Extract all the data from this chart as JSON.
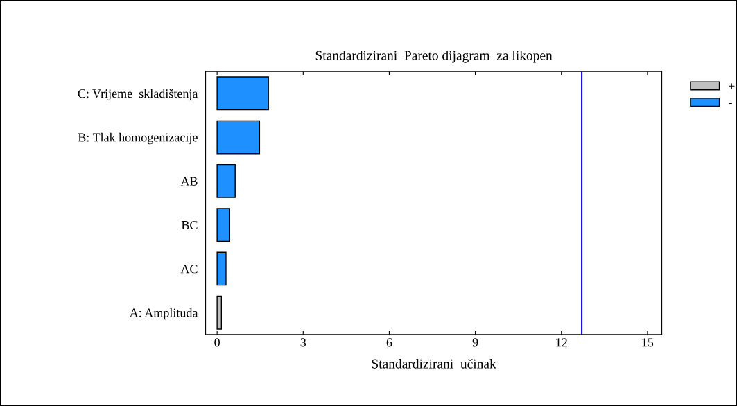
{
  "chart_data": {
    "type": "bar",
    "orientation": "horizontal",
    "title": "Standardizirani  Pareto dijagram  za likopen",
    "xlabel": "Standardizirani  učinak",
    "categories": [
      "C: Vrijeme  skladištenja",
      "B: Tlak homogenizacije",
      "AB",
      "BC",
      "AC",
      "A: Amplituda"
    ],
    "series": [
      {
        "name": "+",
        "color": "#c0c0c0",
        "values": [
          null,
          null,
          null,
          null,
          null,
          0.15
        ]
      },
      {
        "name": "-",
        "color": "#1e90ff",
        "values": [
          1.79,
          1.48,
          0.63,
          0.44,
          0.31,
          null
        ]
      }
    ],
    "xlim": [
      -0.4,
      15.5
    ],
    "xticks": [
      0,
      3,
      6,
      9,
      12,
      15
    ],
    "ref_lines": [
      {
        "axis": "x",
        "value": 12.71,
        "color": "#0000e0"
      }
    ],
    "grid": false,
    "legend": "right"
  }
}
